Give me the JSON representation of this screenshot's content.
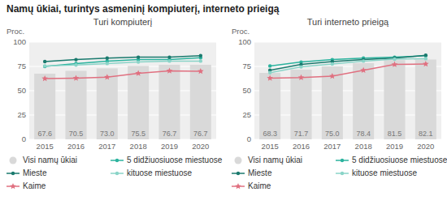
{
  "title": "Namų ūkiai, turintys asmeninį kompiuterį, interneto prieigą",
  "chart_data": [
    {
      "type": "bar",
      "title": "Turi kompiuterį",
      "ylabel": "Proc.",
      "categories": [
        "2015",
        "2016",
        "2017",
        "2018",
        "2019",
        "2020"
      ],
      "series": [
        {
          "name": "Visi namų ūkiai",
          "type": "bar",
          "color": "#d9d9d9",
          "data_labels": true,
          "values": [
            67.6,
            70.5,
            73.0,
            75.5,
            76.7,
            76.7
          ],
          "value_labels": [
            "67.6",
            "70.5",
            "73.0",
            "75.5",
            "76.7",
            "76.7"
          ]
        },
        {
          "name": "5 didžiuosiuose miestuose",
          "type": "line",
          "color": "#2bb39e",
          "marker": "circle",
          "values": [
            75.0,
            78.0,
            80.5,
            82.0,
            82.0,
            84.0
          ]
        },
        {
          "name": "Mieste",
          "type": "line",
          "color": "#1a7a6e",
          "marker": "circle",
          "values": [
            80.0,
            82.0,
            83.5,
            84.5,
            84.5,
            86.0
          ]
        },
        {
          "name": "kituose miestuose",
          "type": "line",
          "color": "#8ad4c8",
          "marker": "circle",
          "values": [
            75.5,
            76.5,
            78.0,
            79.5,
            80.5,
            80.5
          ]
        },
        {
          "name": "Kaime",
          "type": "line",
          "color": "#e07080",
          "marker": "star",
          "values": [
            62.5,
            63.0,
            64.0,
            68.0,
            70.5,
            70.0
          ]
        }
      ],
      "ylim": [
        0,
        100
      ],
      "yticks": [
        0,
        25,
        50,
        75,
        100
      ],
      "grid": true,
      "legend": "bottom"
    },
    {
      "type": "bar",
      "title": "Turi interneto prieigą",
      "ylabel": "Proc.",
      "categories": [
        "2015",
        "2016",
        "2017",
        "2018",
        "2019",
        "2020"
      ],
      "series": [
        {
          "name": "Visi namų ūkiai",
          "type": "bar",
          "color": "#d9d9d9",
          "data_labels": true,
          "values": [
            68.3,
            71.7,
            75.0,
            78.4,
            81.5,
            82.1
          ],
          "value_labels": [
            "68.3",
            "71.7",
            "75.0",
            "78.4",
            "81.5",
            "82.1"
          ]
        },
        {
          "name": "5 didžiuosiuose miestuose",
          "type": "line",
          "color": "#2bb39e",
          "marker": "circle",
          "values": [
            75.5,
            79.5,
            82.0,
            83.5,
            84.5,
            86.0
          ]
        },
        {
          "name": "Mieste",
          "type": "line",
          "color": "#1a7a6e",
          "marker": "circle",
          "values": [
            71.0,
            77.0,
            80.0,
            82.0,
            83.5,
            86.5
          ]
        },
        {
          "name": "kituose miestuose",
          "type": "line",
          "color": "#8ad4c8",
          "marker": "circle",
          "values": [
            68.5,
            74.5,
            77.5,
            80.5,
            82.5,
            83.0
          ]
        },
        {
          "name": "Kaime",
          "type": "line",
          "color": "#e07080",
          "marker": "star",
          "values": [
            63.0,
            63.5,
            65.0,
            71.0,
            77.0,
            77.5
          ]
        }
      ],
      "ylim": [
        0,
        100
      ],
      "yticks": [
        0,
        25,
        50,
        75,
        100
      ],
      "grid": true,
      "legend": "bottom"
    }
  ]
}
